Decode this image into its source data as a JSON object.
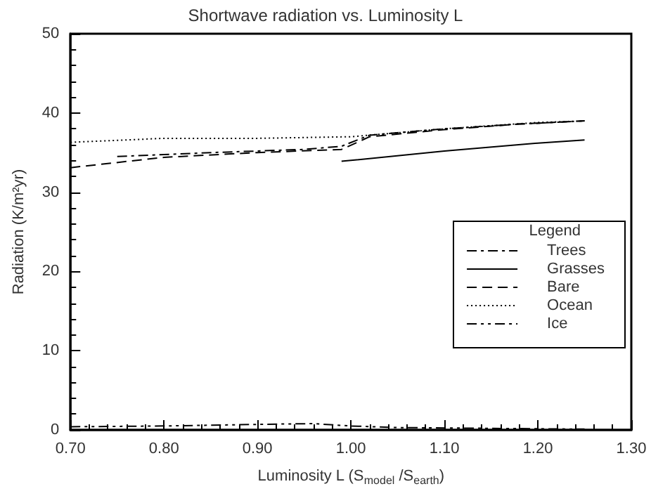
{
  "chart_data": {
    "type": "line",
    "title": "Shortwave radiation vs. Luminosity L",
    "xlabel": "Luminosity L (S$_{model}$ /S$_{earth}$)",
    "ylabel": "Radiation (K/m²yr)",
    "legend_title": "Legend",
    "legend": "right",
    "grid": false,
    "marker": "none",
    "xlim": [
      0.7,
      1.3
    ],
    "xticks": [
      {
        "value": 0.7,
        "label": "0.70"
      },
      {
        "value": 0.8,
        "label": "0.80"
      },
      {
        "value": 0.9,
        "label": "0.90"
      },
      {
        "value": 1.0,
        "label": "1.00"
      },
      {
        "value": 1.1,
        "label": "1.10"
      },
      {
        "value": 1.2,
        "label": "1.20"
      },
      {
        "value": 1.3,
        "label": "1.30"
      }
    ],
    "ylim": [
      0,
      50
    ],
    "yticks": [
      0,
      10,
      20,
      30,
      40,
      50
    ],
    "series": [
      {
        "name": "Trees",
        "color": "#000000",
        "line_style": "dashdot",
        "x": [
          0.75,
          0.85,
          0.95,
          0.99,
          1.02,
          1.1,
          1.18,
          1.25
        ],
        "values": [
          34.5,
          35,
          35.4,
          35.8,
          37.2,
          38,
          38.6,
          39
        ]
      },
      {
        "name": "Grasses",
        "color": "#000000",
        "line_style": "solid",
        "x": [
          0.99,
          1.1,
          1.2,
          1.25
        ],
        "values": [
          33.9,
          35.2,
          36.2,
          36.6
        ]
      },
      {
        "name": "Bare",
        "color": "#000000",
        "line_style": "dashed",
        "x": [
          0.7,
          0.8,
          0.9,
          0.99,
          1.02,
          1.1,
          1.18,
          1.25
        ],
        "values": [
          33.1,
          34.4,
          35,
          35.4,
          37,
          37.9,
          38.6,
          39
        ]
      },
      {
        "name": "Ocean",
        "color": "#000000",
        "line_style": "dotted",
        "x": [
          0.7,
          0.8,
          0.9,
          1.0,
          1.1,
          1.2,
          1.25
        ],
        "values": [
          36.3,
          36.8,
          36.8,
          37,
          38,
          38.8,
          39
        ]
      },
      {
        "name": "Ice",
        "color": "#000000",
        "line_style": "dashdotdot",
        "x": [
          0.7,
          0.8,
          0.9,
          0.96,
          1.0,
          1.05,
          1.15,
          1.25
        ],
        "values": [
          0.4,
          0.5,
          0.7,
          0.8,
          0.5,
          0.3,
          0.2,
          0.1
        ]
      }
    ]
  }
}
